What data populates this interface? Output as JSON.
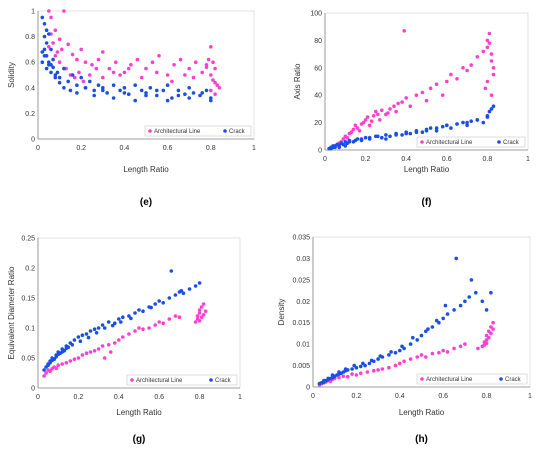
{
  "colors": {
    "architectural_line": "#ff3fd0",
    "crack": "#1a4fe6"
  },
  "chart_data": [
    {
      "type": "scatter",
      "panel": "(e)",
      "xlabel": "Length Ratio",
      "ylabel": "Solidity",
      "xlim": [
        0,
        1
      ],
      "ylim": [
        0,
        1
      ],
      "xticks": [
        "0",
        "0.2",
        "0.4",
        "0.6",
        "0.8",
        "1"
      ],
      "yticks": [
        "0",
        "0.2",
        "0.4",
        "0.6",
        "0.8",
        "1"
      ],
      "legend": "bottom-right",
      "series": [
        {
          "name": "Architectural Line",
          "x": [
            0.05,
            0.06,
            0.08,
            0.1,
            0.12,
            0.05,
            0.07,
            0.09,
            0.11,
            0.14,
            0.16,
            0.18,
            0.2,
            0.22,
            0.25,
            0.28,
            0.3,
            0.33,
            0.36,
            0.4,
            0.43,
            0.46,
            0.5,
            0.53,
            0.56,
            0.6,
            0.63,
            0.66,
            0.7,
            0.73,
            0.76,
            0.78,
            0.79,
            0.8,
            0.81,
            0.82,
            0.83,
            0.8,
            0.82,
            0.81,
            0.78,
            0.06,
            0.08,
            0.1,
            0.13,
            0.15,
            0.17,
            0.19,
            0.21,
            0.24,
            0.27,
            0.3,
            0.35,
            0.38,
            0.42,
            0.48,
            0.55,
            0.62,
            0.68,
            0.72,
            0.8,
            0.82,
            0.84
          ],
          "y": [
            1.0,
            0.95,
            0.85,
            0.78,
            1.0,
            0.72,
            0.75,
            0.68,
            0.7,
            0.74,
            0.66,
            0.62,
            0.7,
            0.6,
            0.58,
            0.62,
            0.68,
            0.55,
            0.6,
            0.52,
            0.58,
            0.62,
            0.55,
            0.6,
            0.65,
            0.5,
            0.58,
            0.62,
            0.55,
            0.6,
            0.52,
            0.58,
            0.62,
            0.5,
            0.46,
            0.55,
            0.42,
            0.38,
            0.35,
            0.6,
            0.56,
            0.82,
            0.65,
            0.6,
            0.55,
            0.5,
            0.48,
            0.52,
            0.45,
            0.5,
            0.55,
            0.48,
            0.52,
            0.5,
            0.55,
            0.48,
            0.52,
            0.45,
            0.5,
            0.48,
            0.72,
            0.44,
            0.4
          ]
        },
        {
          "name": "Crack",
          "x": [
            0.02,
            0.03,
            0.04,
            0.03,
            0.05,
            0.04,
            0.06,
            0.02,
            0.03,
            0.05,
            0.07,
            0.04,
            0.06,
            0.08,
            0.09,
            0.1,
            0.12,
            0.14,
            0.16,
            0.18,
            0.2,
            0.22,
            0.24,
            0.26,
            0.28,
            0.3,
            0.32,
            0.35,
            0.38,
            0.4,
            0.42,
            0.45,
            0.48,
            0.5,
            0.52,
            0.55,
            0.58,
            0.6,
            0.62,
            0.65,
            0.68,
            0.7,
            0.72,
            0.75,
            0.78,
            0.8,
            0.02,
            0.03,
            0.04,
            0.05,
            0.06,
            0.07,
            0.08,
            0.1,
            0.12,
            0.15,
            0.18,
            0.22,
            0.26,
            0.3,
            0.35,
            0.4,
            0.45,
            0.5,
            0.55,
            0.6,
            0.65,
            0.7,
            0.76,
            0.8
          ],
          "y": [
            0.95,
            0.9,
            0.85,
            0.8,
            0.82,
            0.75,
            0.7,
            0.68,
            0.65,
            0.6,
            0.62,
            0.55,
            0.58,
            0.5,
            0.52,
            0.48,
            0.55,
            0.45,
            0.5,
            0.42,
            0.48,
            0.4,
            0.45,
            0.38,
            0.42,
            0.4,
            0.36,
            0.42,
            0.38,
            0.4,
            0.35,
            0.42,
            0.38,
            0.36,
            0.4,
            0.34,
            0.38,
            0.42,
            0.32,
            0.38,
            0.35,
            0.4,
            0.36,
            0.34,
            0.38,
            0.32,
            0.6,
            0.7,
            0.65,
            0.58,
            0.52,
            0.56,
            0.48,
            0.44,
            0.4,
            0.38,
            0.36,
            0.4,
            0.34,
            0.38,
            0.32,
            0.36,
            0.3,
            0.34,
            0.38,
            0.3,
            0.34,
            0.32,
            0.36,
            0.3
          ]
        }
      ]
    },
    {
      "type": "scatter",
      "panel": "(f)",
      "xlabel": "Length Ratio",
      "ylabel": "Axis Ratio",
      "xlim": [
        0,
        1
      ],
      "ylim": [
        0,
        100
      ],
      "xticks": [
        "0",
        "0.2",
        "0.4",
        "0.6",
        "0.8",
        "1"
      ],
      "yticks": [
        "0",
        "20",
        "40",
        "60",
        "80",
        "100"
      ],
      "legend": "bottom-right",
      "series": [
        {
          "name": "Architectural Line",
          "x": [
            0.05,
            0.07,
            0.09,
            0.1,
            0.12,
            0.14,
            0.15,
            0.17,
            0.19,
            0.2,
            0.22,
            0.24,
            0.25,
            0.27,
            0.3,
            0.32,
            0.35,
            0.38,
            0.4,
            0.42,
            0.45,
            0.48,
            0.5,
            0.52,
            0.55,
            0.58,
            0.6,
            0.62,
            0.65,
            0.68,
            0.7,
            0.72,
            0.75,
            0.78,
            0.8,
            0.8,
            0.81,
            0.81,
            0.82,
            0.82,
            0.83,
            0.83,
            0.8,
            0.79,
            0.82,
            0.39,
            0.08,
            0.11,
            0.13,
            0.16,
            0.18,
            0.21,
            0.23,
            0.26,
            0.28,
            0.31,
            0.34,
            0.36
          ],
          "y": [
            3,
            5,
            8,
            10,
            12,
            15,
            18,
            14,
            20,
            22,
            18,
            25,
            28,
            22,
            26,
            30,
            28,
            35,
            38,
            32,
            40,
            42,
            36,
            45,
            48,
            40,
            50,
            55,
            52,
            60,
            58,
            62,
            68,
            72,
            75,
            80,
            78,
            85,
            70,
            65,
            60,
            55,
            50,
            45,
            40,
            87,
            6,
            9,
            13,
            16,
            19,
            24,
            21,
            26,
            29,
            27,
            32,
            34
          ]
        },
        {
          "name": "Crack",
          "x": [
            0.02,
            0.03,
            0.04,
            0.05,
            0.06,
            0.07,
            0.08,
            0.09,
            0.1,
            0.11,
            0.12,
            0.14,
            0.16,
            0.18,
            0.2,
            0.22,
            0.25,
            0.28,
            0.3,
            0.32,
            0.35,
            0.38,
            0.4,
            0.42,
            0.45,
            0.48,
            0.5,
            0.52,
            0.55,
            0.58,
            0.6,
            0.62,
            0.65,
            0.68,
            0.7,
            0.72,
            0.75,
            0.78,
            0.8,
            0.81,
            0.82,
            0.83,
            0.03,
            0.04,
            0.05,
            0.06,
            0.07,
            0.08,
            0.1,
            0.12,
            0.15,
            0.18,
            0.22,
            0.26,
            0.3,
            0.35,
            0.4,
            0.45,
            0.5,
            0.55,
            0.6,
            0.65,
            0.7,
            0.75,
            0.8
          ],
          "y": [
            1,
            2,
            3,
            2,
            4,
            3,
            5,
            4,
            6,
            5,
            7,
            6,
            8,
            7,
            9,
            8,
            10,
            9,
            11,
            10,
            12,
            11,
            13,
            12,
            14,
            13,
            15,
            16,
            14,
            17,
            18,
            16,
            19,
            20,
            18,
            21,
            22,
            20,
            25,
            28,
            30,
            32,
            1,
            2,
            3,
            4,
            2,
            5,
            3,
            6,
            7,
            8,
            9,
            10,
            8,
            11,
            12,
            13,
            14,
            16,
            18,
            19,
            20,
            22,
            24
          ]
        }
      ]
    },
    {
      "type": "scatter",
      "panel": "(g)",
      "xlabel": "Length Ratio",
      "ylabel": "Equivalent Diameter Ratio",
      "xlim": [
        0,
        1
      ],
      "ylim": [
        0,
        0.25
      ],
      "xticks": [
        "0",
        "0.2",
        "0.4",
        "0.6",
        "0.8",
        "1"
      ],
      "yticks": [
        "0",
        "0.05",
        "0.1",
        "0.15",
        "0.2",
        "0.25"
      ],
      "legend": "bottom-right",
      "series": [
        {
          "name": "Architectural Line",
          "x": [
            0.03,
            0.04,
            0.05,
            0.06,
            0.07,
            0.08,
            0.09,
            0.1,
            0.12,
            0.14,
            0.16,
            0.18,
            0.2,
            0.22,
            0.24,
            0.26,
            0.28,
            0.3,
            0.32,
            0.35,
            0.38,
            0.4,
            0.42,
            0.45,
            0.48,
            0.5,
            0.52,
            0.55,
            0.58,
            0.6,
            0.62,
            0.65,
            0.68,
            0.7,
            0.78,
            0.79,
            0.8,
            0.8,
            0.81,
            0.81,
            0.82,
            0.82,
            0.83,
            0.8,
            0.79,
            0.33,
            0.36
          ],
          "y": [
            0.02,
            0.025,
            0.03,
            0.028,
            0.032,
            0.035,
            0.033,
            0.038,
            0.04,
            0.042,
            0.045,
            0.048,
            0.05,
            0.055,
            0.058,
            0.06,
            0.062,
            0.065,
            0.07,
            0.072,
            0.075,
            0.08,
            0.085,
            0.09,
            0.095,
            0.1,
            0.098,
            0.1,
            0.105,
            0.11,
            0.108,
            0.115,
            0.12,
            0.118,
            0.11,
            0.12,
            0.125,
            0.13,
            0.118,
            0.135,
            0.122,
            0.14,
            0.128,
            0.112,
            0.115,
            0.05,
            0.06
          ]
        },
        {
          "name": "Crack",
          "x": [
            0.03,
            0.04,
            0.05,
            0.06,
            0.07,
            0.08,
            0.09,
            0.1,
            0.11,
            0.12,
            0.13,
            0.14,
            0.15,
            0.16,
            0.18,
            0.2,
            0.22,
            0.24,
            0.26,
            0.28,
            0.3,
            0.32,
            0.35,
            0.38,
            0.4,
            0.42,
            0.45,
            0.48,
            0.5,
            0.52,
            0.55,
            0.58,
            0.6,
            0.62,
            0.65,
            0.68,
            0.7,
            0.72,
            0.75,
            0.78,
            0.8,
            0.66,
            0.05,
            0.06,
            0.07,
            0.09,
            0.1,
            0.12,
            0.14,
            0.17,
            0.21,
            0.25,
            0.29,
            0.33,
            0.37,
            0.41,
            0.46,
            0.56,
            0.71
          ],
          "y": [
            0.03,
            0.035,
            0.04,
            0.045,
            0.05,
            0.048,
            0.055,
            0.06,
            0.058,
            0.065,
            0.062,
            0.07,
            0.068,
            0.075,
            0.08,
            0.085,
            0.088,
            0.09,
            0.095,
            0.098,
            0.1,
            0.105,
            0.11,
            0.108,
            0.115,
            0.118,
            0.12,
            0.125,
            0.13,
            0.128,
            0.135,
            0.14,
            0.145,
            0.142,
            0.15,
            0.155,
            0.16,
            0.158,
            0.165,
            0.17,
            0.175,
            0.195,
            0.038,
            0.042,
            0.046,
            0.052,
            0.056,
            0.06,
            0.066,
            0.072,
            0.078,
            0.084,
            0.092,
            0.1,
            0.104,
            0.11,
            0.116,
            0.134,
            0.162
          ]
        }
      ]
    },
    {
      "type": "scatter",
      "panel": "(h)",
      "xlabel": "Length Ratio",
      "ylabel": "Density",
      "xlim": [
        0,
        1
      ],
      "ylim": [
        0,
        0.035
      ],
      "xticks": [
        "0",
        "0.2",
        "0.4",
        "0.6",
        "0.8",
        "1"
      ],
      "yticks": [
        "0",
        "0.005",
        "0.01",
        "0.015",
        "0.02",
        "0.025",
        "0.03",
        "0.035"
      ],
      "legend": "bottom-right",
      "series": [
        {
          "name": "Architectural Line",
          "x": [
            0.03,
            0.04,
            0.05,
            0.06,
            0.07,
            0.08,
            0.09,
            0.1,
            0.12,
            0.14,
            0.16,
            0.18,
            0.2,
            0.22,
            0.25,
            0.28,
            0.3,
            0.32,
            0.35,
            0.38,
            0.4,
            0.42,
            0.45,
            0.48,
            0.5,
            0.52,
            0.55,
            0.58,
            0.6,
            0.62,
            0.65,
            0.68,
            0.7,
            0.76,
            0.78,
            0.79,
            0.8,
            0.8,
            0.81,
            0.81,
            0.82,
            0.82,
            0.83,
            0.83,
            0.8,
            0.79
          ],
          "y": [
            0.0005,
            0.0008,
            0.001,
            0.0012,
            0.0015,
            0.0013,
            0.0018,
            0.002,
            0.0022,
            0.0025,
            0.0024,
            0.003,
            0.0028,
            0.0032,
            0.0035,
            0.0038,
            0.004,
            0.0042,
            0.0045,
            0.005,
            0.0055,
            0.006,
            0.0065,
            0.007,
            0.0075,
            0.007,
            0.0078,
            0.008,
            0.0085,
            0.0082,
            0.009,
            0.0095,
            0.01,
            0.009,
            0.0095,
            0.0105,
            0.011,
            0.012,
            0.0115,
            0.013,
            0.0125,
            0.014,
            0.0135,
            0.015,
            0.0102,
            0.0098
          ]
        },
        {
          "name": "Crack",
          "x": [
            0.03,
            0.04,
            0.05,
            0.06,
            0.07,
            0.08,
            0.09,
            0.1,
            0.11,
            0.12,
            0.13,
            0.14,
            0.15,
            0.16,
            0.18,
            0.2,
            0.22,
            0.24,
            0.26,
            0.28,
            0.3,
            0.32,
            0.35,
            0.38,
            0.4,
            0.42,
            0.45,
            0.48,
            0.5,
            0.52,
            0.55,
            0.58,
            0.6,
            0.62,
            0.65,
            0.68,
            0.7,
            0.72,
            0.75,
            0.78,
            0.8,
            0.82,
            0.66,
            0.05,
            0.07,
            0.09,
            0.12,
            0.15,
            0.19,
            0.23,
            0.27,
            0.31,
            0.36,
            0.41,
            0.46,
            0.53,
            0.57,
            0.61,
            0.73
          ],
          "y": [
            0.0008,
            0.001,
            0.0012,
            0.0015,
            0.0018,
            0.002,
            0.0022,
            0.0025,
            0.0028,
            0.003,
            0.0032,
            0.0035,
            0.0038,
            0.004,
            0.0042,
            0.0045,
            0.0048,
            0.005,
            0.0055,
            0.006,
            0.0065,
            0.007,
            0.0075,
            0.008,
            0.0085,
            0.009,
            0.01,
            0.011,
            0.012,
            0.013,
            0.014,
            0.015,
            0.016,
            0.017,
            0.018,
            0.019,
            0.02,
            0.021,
            0.022,
            0.02,
            0.018,
            0.022,
            0.03,
            0.0015,
            0.002,
            0.0028,
            0.0035,
            0.0042,
            0.005,
            0.0055,
            0.0062,
            0.0072,
            0.0082,
            0.0095,
            0.0115,
            0.0135,
            0.0155,
            0.019,
            0.025
          ]
        }
      ]
    }
  ]
}
